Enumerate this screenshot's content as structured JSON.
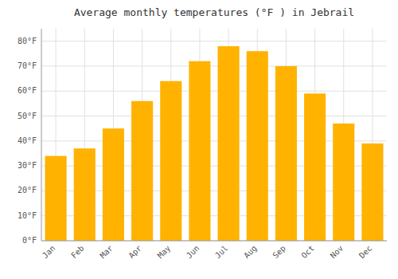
{
  "chart_data": {
    "type": "bar",
    "title": "Average monthly temperatures (°F ) in Jebrail",
    "categories": [
      "Jan",
      "Feb",
      "Mar",
      "Apr",
      "May",
      "Jun",
      "Jul",
      "Aug",
      "Sep",
      "Oct",
      "Nov",
      "Dec"
    ],
    "values": [
      34,
      37,
      45,
      56,
      64,
      72,
      78,
      76,
      70,
      59,
      47,
      39
    ],
    "color": "#FFB300",
    "ylim": [
      0,
      85
    ],
    "yticks": [
      {
        "value": 0,
        "label": "0°F"
      },
      {
        "value": 10,
        "label": "10°F"
      },
      {
        "value": 20,
        "label": "20°F"
      },
      {
        "value": 30,
        "label": "30°F"
      },
      {
        "value": 40,
        "label": "40°F"
      },
      {
        "value": 50,
        "label": "50°F"
      },
      {
        "value": 60,
        "label": "60°F"
      },
      {
        "value": 70,
        "label": "70°F"
      },
      {
        "value": 80,
        "label": "80°F"
      }
    ],
    "grid": true
  }
}
